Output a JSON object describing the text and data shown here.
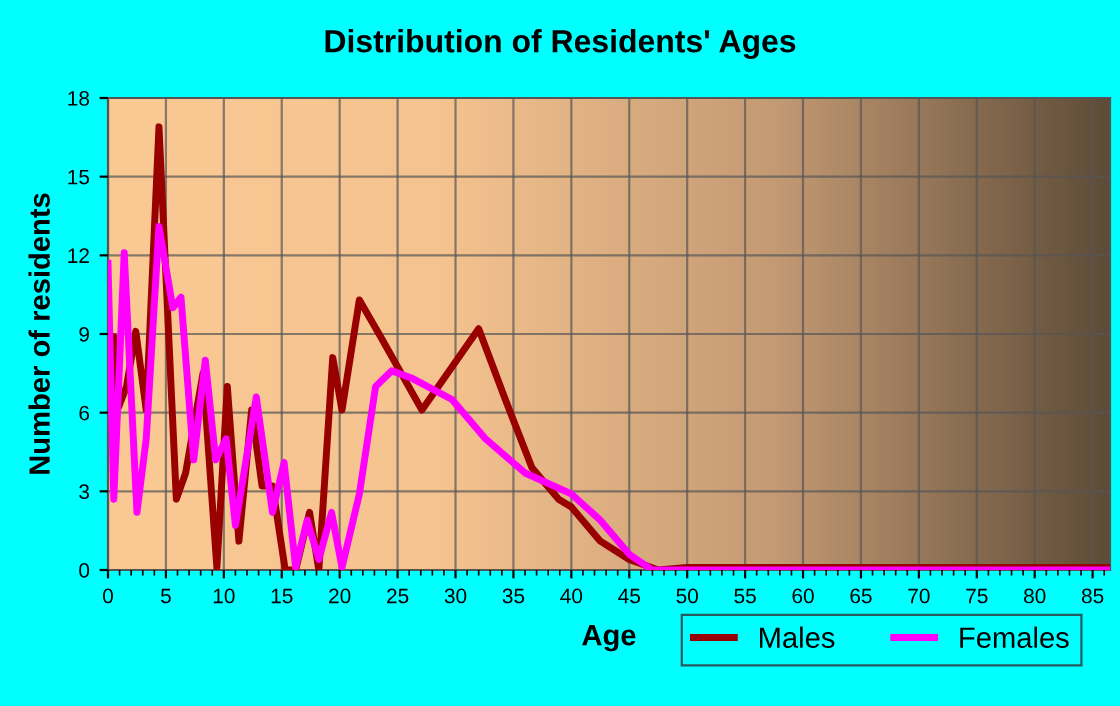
{
  "chart_data": {
    "type": "line",
    "title": "Distribution of Residents' Ages",
    "xlabel": "Age",
    "ylabel": "Number of residents",
    "xlim": [
      0,
      86.5
    ],
    "xticks": [
      0,
      5,
      10,
      15,
      20,
      25,
      30,
      35,
      40,
      45,
      50,
      55,
      60,
      65,
      70,
      75,
      80,
      85
    ],
    "ylim": [
      0,
      18
    ],
    "yticks": [
      0,
      3,
      6,
      9,
      12,
      15,
      18
    ],
    "grid": true,
    "legend": "bottom right",
    "marker": "none",
    "line_style": "solid",
    "series": [
      {
        "name": "Males",
        "color": "#990000",
        "x": [
          0,
          0.5,
          0.9,
          1.6,
          2.4,
          3.3,
          4.4,
          5.9,
          6.7,
          8.2,
          9.4,
          10.3,
          11.3,
          12.4,
          13.3,
          14.2,
          15.3,
          16.2,
          17.4,
          18.2,
          19.4,
          20.2,
          21.7,
          23.4,
          27.1,
          32,
          34.3,
          36.6,
          38.9,
          40,
          42.5,
          45,
          47.5,
          50,
          60,
          70,
          86.5
        ],
        "values": [
          6.2,
          8.9,
          6.2,
          7,
          9.1,
          6.1,
          16.9,
          2.7,
          3.7,
          7.5,
          0.1,
          7,
          1.1,
          6.1,
          3.2,
          3.2,
          0,
          0,
          2.2,
          0,
          8.1,
          6.1,
          10.3,
          9,
          6.1,
          9.2,
          6.5,
          3.9,
          2.7,
          2.4,
          1.1,
          0.4,
          0,
          0.1,
          0.1,
          0.1,
          0.1
        ]
      },
      {
        "name": "Females",
        "color": "#ff00ff",
        "x": [
          0,
          0.5,
          1.4,
          2.5,
          3.3,
          4.4,
          5.6,
          6.3,
          7.4,
          8.4,
          9.3,
          10.2,
          11,
          12.8,
          14.2,
          15.2,
          16.2,
          17.2,
          18.2,
          19.3,
          20.2,
          21.7,
          23.1,
          24.5,
          26.3,
          29.7,
          32.6,
          36,
          40,
          42.5,
          45,
          47,
          50,
          60,
          70,
          86.5
        ],
        "values": [
          11.7,
          2.7,
          12.1,
          2.2,
          5,
          13.1,
          10,
          10.4,
          4.2,
          8,
          4.2,
          5,
          1.7,
          6.6,
          2.2,
          4.1,
          0.1,
          1.9,
          0.4,
          2.2,
          0.1,
          2.9,
          7,
          7.6,
          7.3,
          6.5,
          5,
          3.7,
          2.9,
          1.9,
          0.6,
          0,
          0,
          0,
          0,
          0
        ]
      }
    ]
  }
}
